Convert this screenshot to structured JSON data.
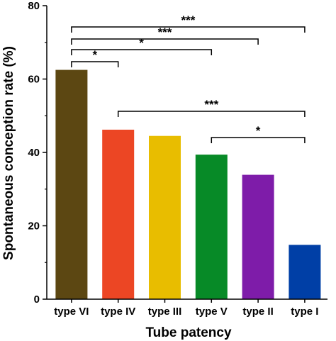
{
  "chart_data": {
    "type": "bar",
    "title": "",
    "xlabel": "Tube patency",
    "ylabel": "Spontaneous conception rate (%)",
    "ylim": [
      0,
      80
    ],
    "yticks": [
      0,
      20,
      40,
      60,
      80
    ],
    "grid": false,
    "legend": "none",
    "categories": [
      "type VI",
      "type IV",
      "type III",
      "type V",
      "type II",
      "type I"
    ],
    "values": [
      62.5,
      46.2,
      44.5,
      39.4,
      33.9,
      14.8
    ],
    "colors": [
      "#5c4712",
      "#ec4624",
      "#e8bd00",
      "#078a27",
      "#7e1ca9",
      "#003fa6"
    ],
    "significance": [
      {
        "from": 0,
        "to": 5,
        "label": "***"
      },
      {
        "from": 0,
        "to": 4,
        "label": "***"
      },
      {
        "from": 0,
        "to": 3,
        "label": "*"
      },
      {
        "from": 0,
        "to": 1,
        "label": "*"
      },
      {
        "from": 1,
        "to": 5,
        "label": "***"
      },
      {
        "from": 3,
        "to": 5,
        "label": "*"
      }
    ]
  }
}
